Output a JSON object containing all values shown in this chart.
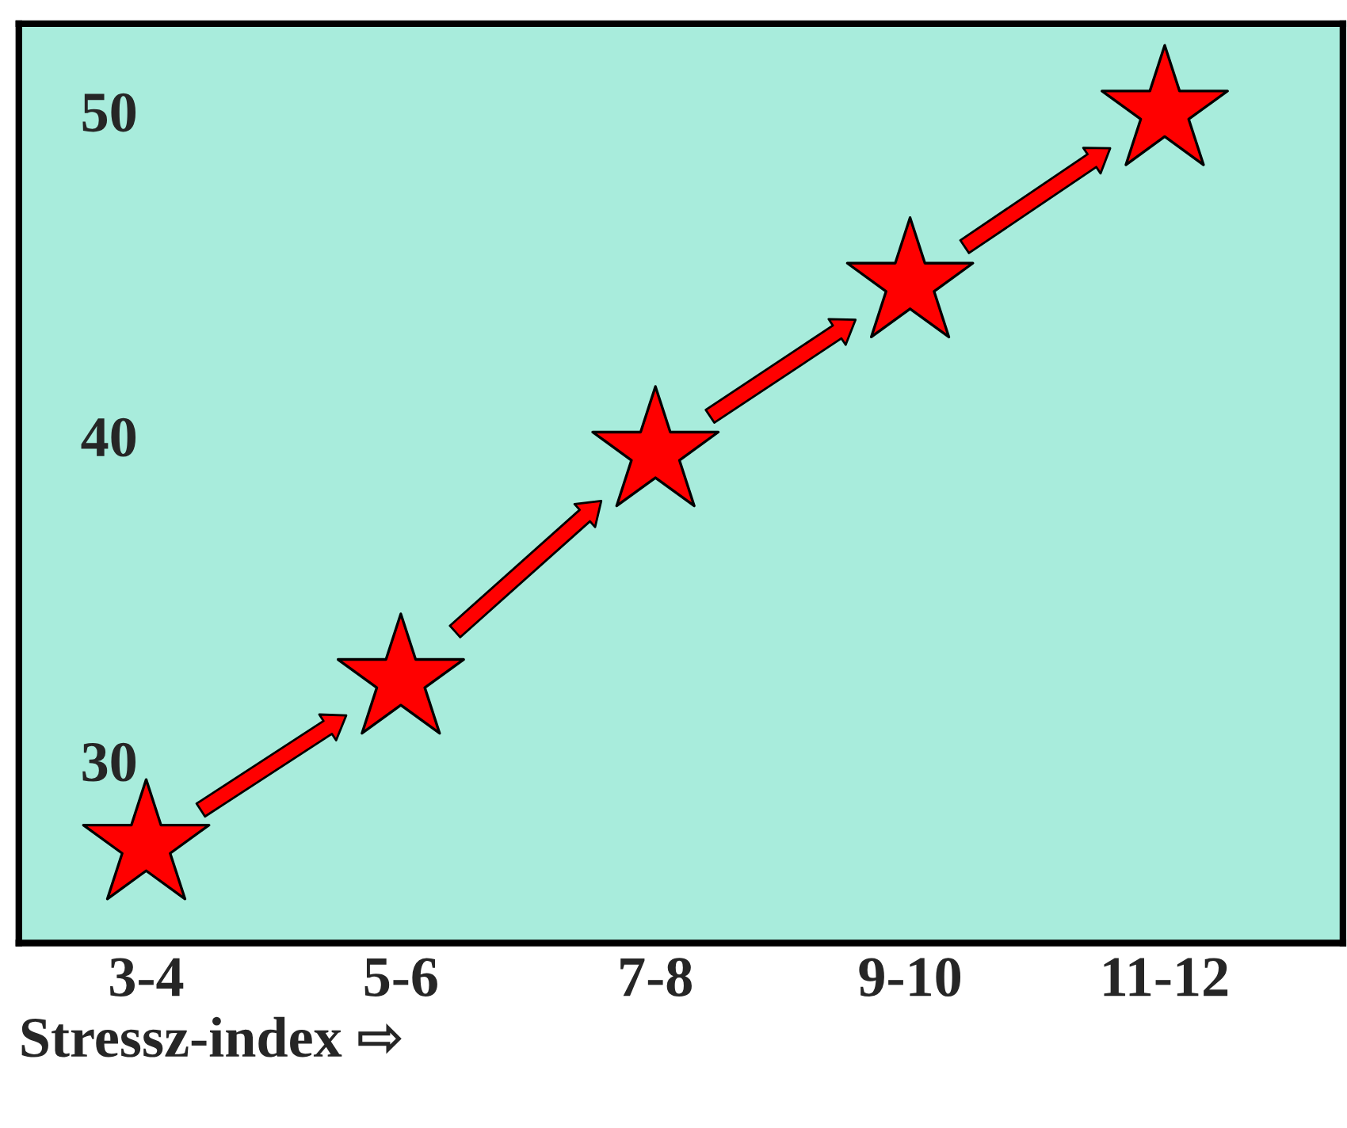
{
  "chart_data": {
    "type": "scatter",
    "xlabel": "Stressz-index ⇨",
    "categories": [
      "3-4",
      "5-6",
      "7-8",
      "9-10",
      "11-12"
    ],
    "series": [
      {
        "color": "#ff0000",
        "values": [
          27.4,
          32.5,
          39.5,
          44.7,
          50
        ]
      }
    ],
    "marker": "star",
    "ylim": [
      24.4,
      52.7
    ],
    "yticks": [
      30,
      40,
      50
    ],
    "grid": false
  }
}
